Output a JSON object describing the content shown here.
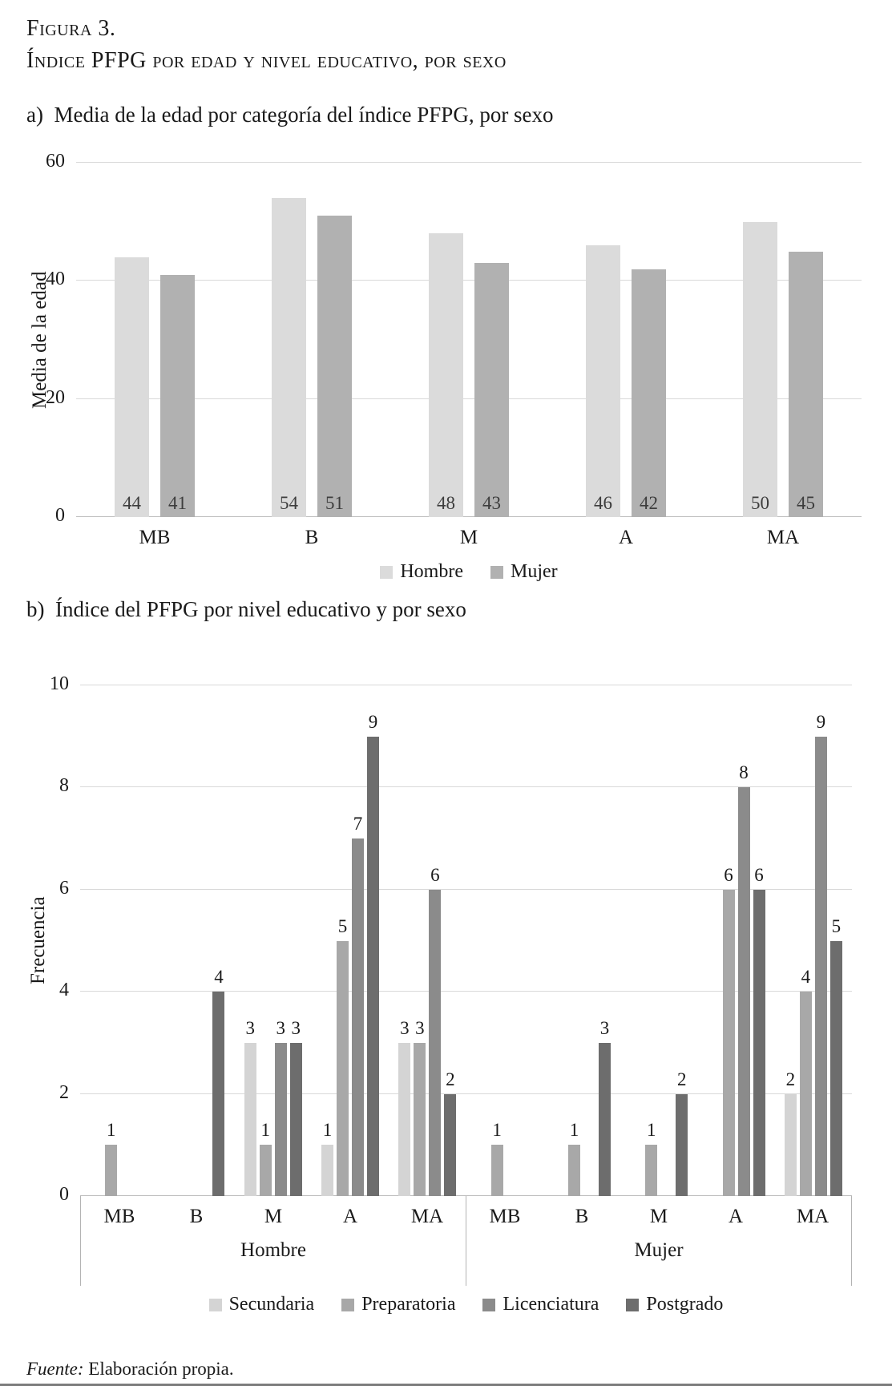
{
  "figure": {
    "label": "Figura 3.",
    "title": "Índice PFPG por edad y nivel educativo, por sexo"
  },
  "sections": {
    "a_title": "a)  Media de la edad por categoría del índice PFPG, por sexo",
    "b_title": "b)  Índice del PFPG por nivel educativo y por sexo"
  },
  "source": {
    "label": "Fuente:",
    "text": "Elaboración propia."
  },
  "chart_data": [
    {
      "type": "bar",
      "title": "Media de la edad por categoría del índice PFPG, por sexo",
      "categories": [
        "MB",
        "B",
        "M",
        "A",
        "MA"
      ],
      "series": [
        {
          "name": "Hombre",
          "color": "#dbdbdb",
          "values": [
            44,
            54,
            48,
            46,
            50
          ]
        },
        {
          "name": "Mujer",
          "color": "#b1b1b1",
          "values": [
            41,
            51,
            43,
            42,
            45
          ]
        }
      ],
      "xlabel": "",
      "ylabel": "Media de la edad",
      "ylim": [
        0,
        60
      ],
      "yticks": [
        0,
        20,
        40,
        60
      ],
      "grid": true,
      "legend_position": "bottom",
      "value_label_position": "inside-base"
    },
    {
      "type": "bar",
      "title": "Índice del PFPG por nivel educativo y por sexo",
      "group_labels": [
        "Hombre",
        "Mujer"
      ],
      "categories": [
        "MB",
        "B",
        "M",
        "A",
        "MA",
        "MB",
        "B",
        "M",
        "A",
        "MA"
      ],
      "series": [
        {
          "name": "Secundaria",
          "color": "#d4d4d4",
          "values": [
            0,
            0,
            3,
            1,
            3,
            0,
            0,
            0,
            0,
            2
          ]
        },
        {
          "name": "Preparatoria",
          "color": "#a8a8a8",
          "values": [
            1,
            0,
            1,
            5,
            3,
            1,
            1,
            1,
            6,
            4
          ]
        },
        {
          "name": "Licenciatura",
          "color": "#8b8b8b",
          "values": [
            0,
            0,
            3,
            7,
            6,
            0,
            0,
            0,
            8,
            9
          ]
        },
        {
          "name": "Postgrado",
          "color": "#6d6d6d",
          "values": [
            0,
            4,
            3,
            9,
            2,
            0,
            3,
            2,
            6,
            5
          ]
        }
      ],
      "xlabel": "",
      "ylabel": "Frecuencia",
      "ylim": [
        0,
        10
      ],
      "yticks": [
        0,
        2,
        4,
        6,
        8,
        10
      ],
      "grid": true,
      "legend_position": "bottom",
      "value_label_position": "above"
    }
  ]
}
